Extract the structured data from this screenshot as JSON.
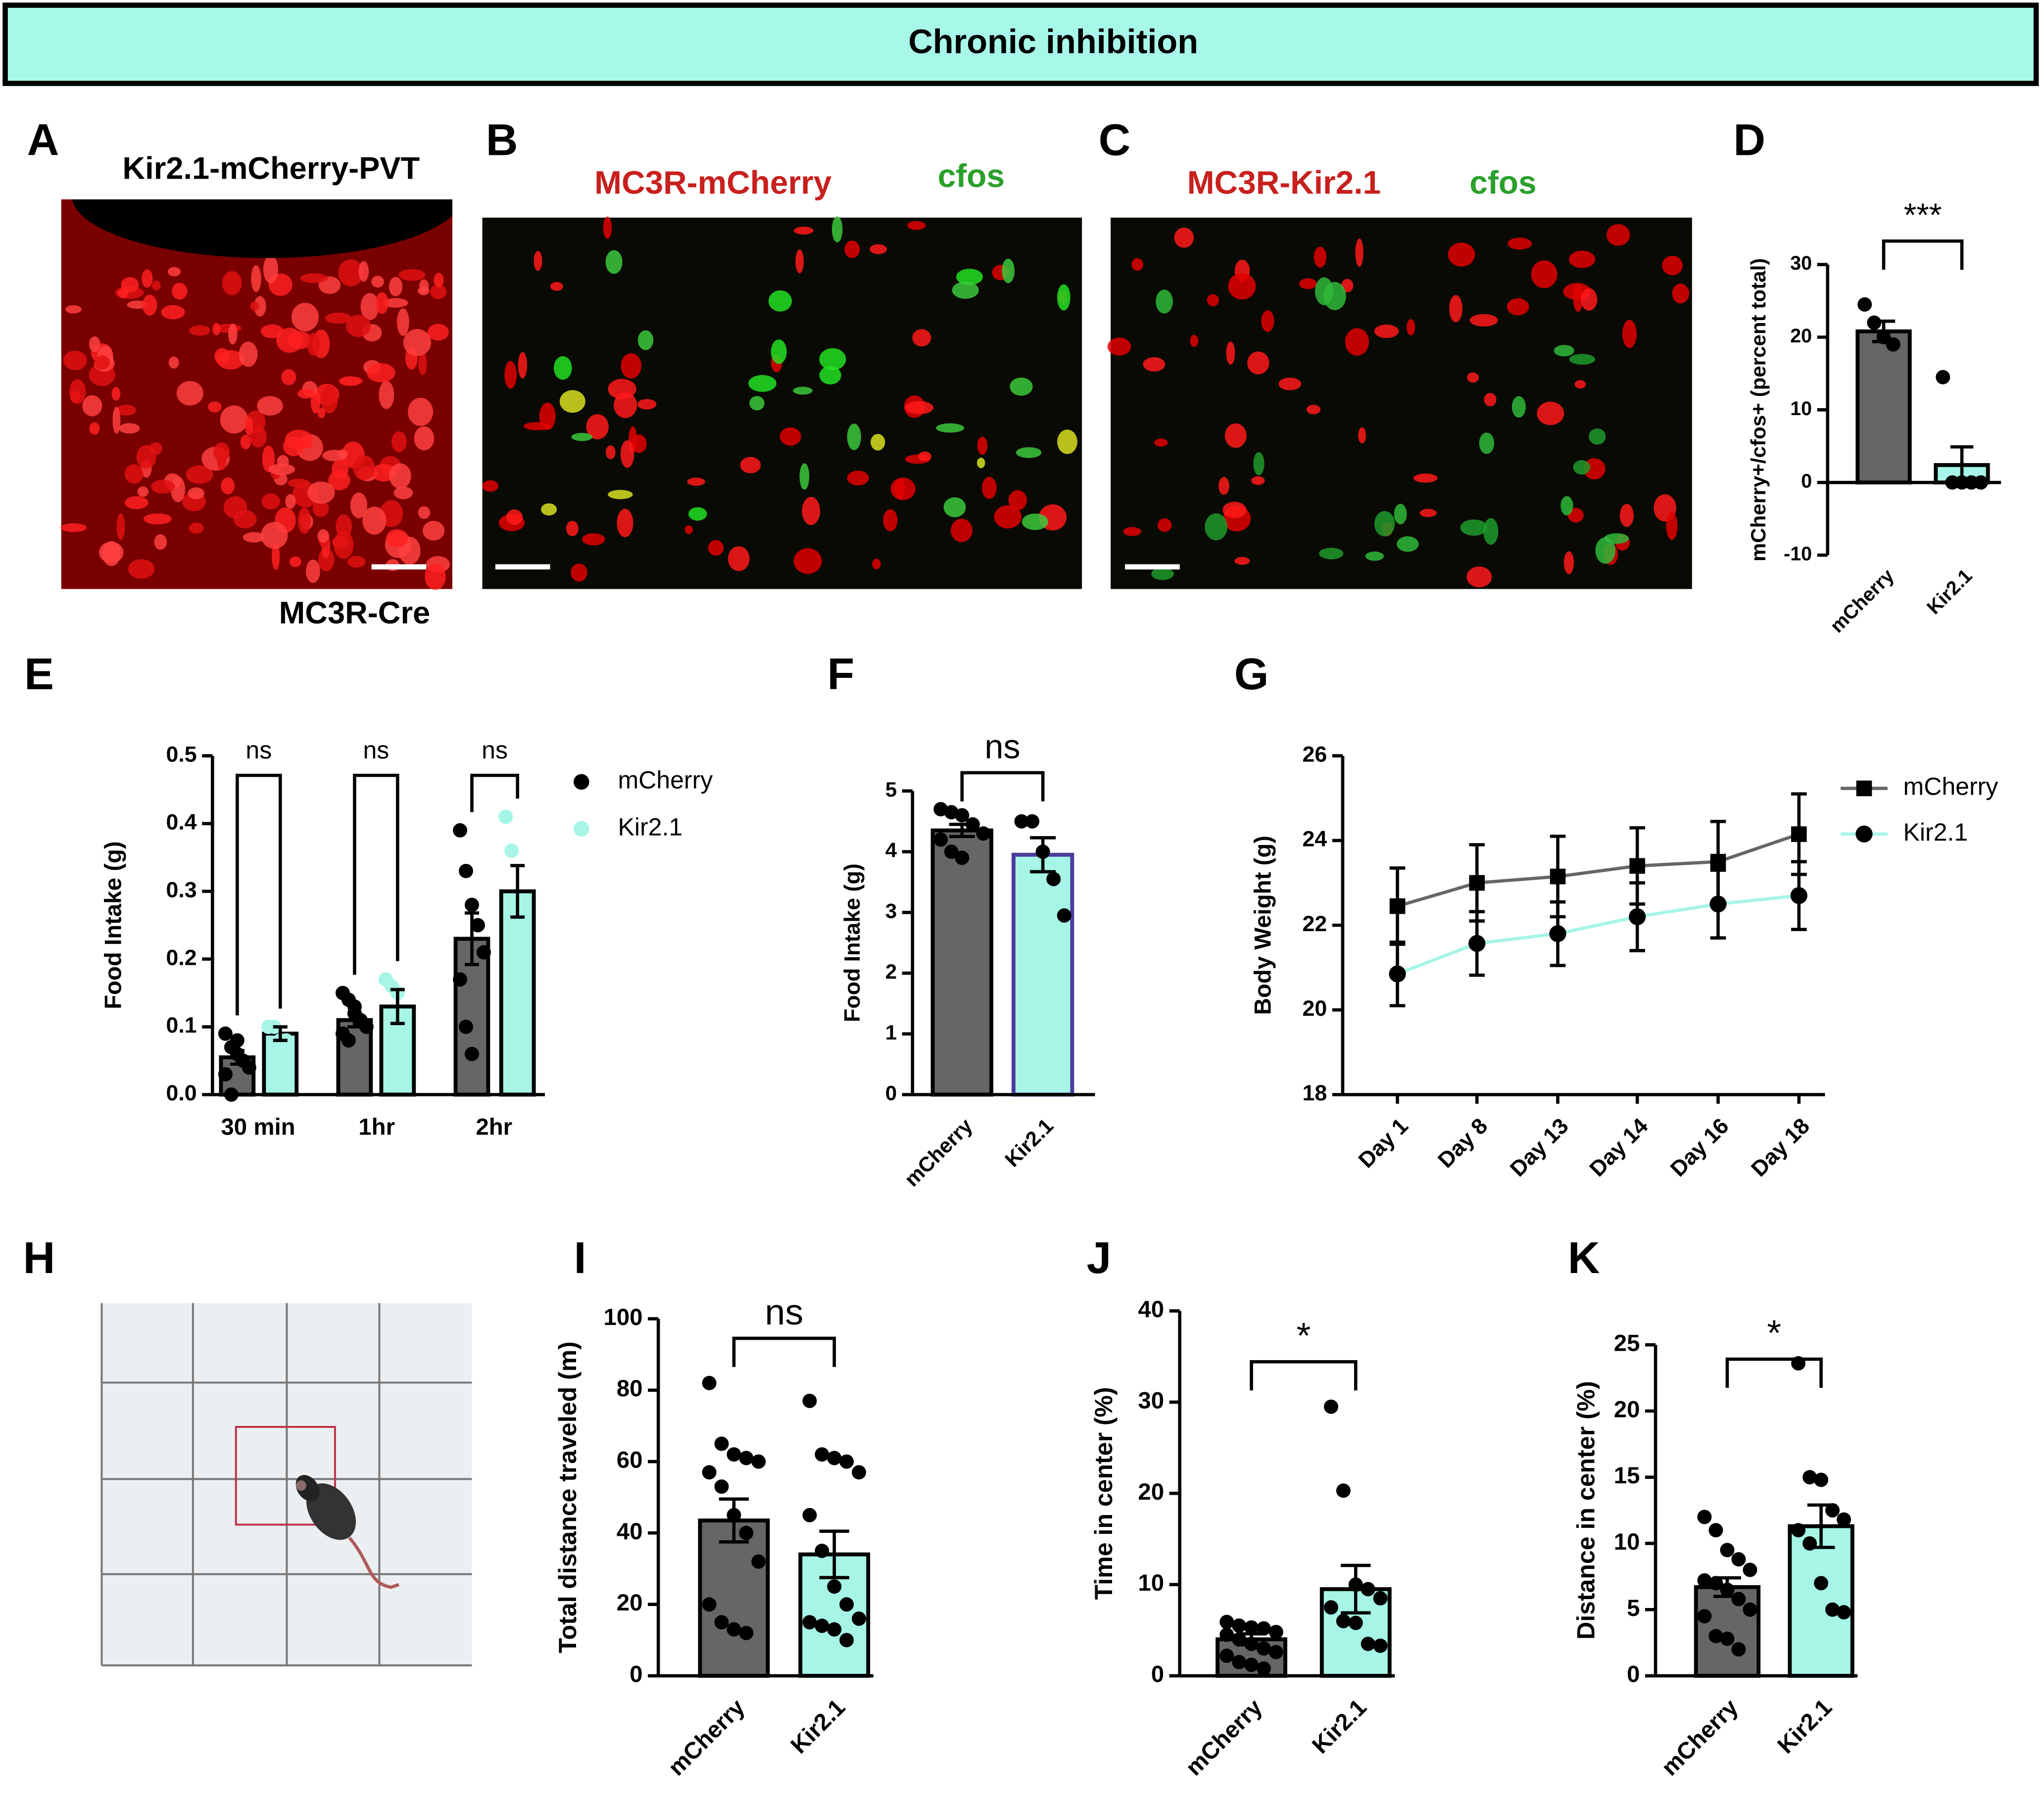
{
  "header": {
    "title": "Chronic inhibition"
  },
  "panel_letters": [
    "A",
    "B",
    "C",
    "D",
    "E",
    "F",
    "G",
    "H",
    "I",
    "J",
    "K"
  ],
  "images": [
    {
      "title": "Kir2.1-mCherry-PVT",
      "caption": "MC3R-Cre"
    },
    {
      "red_label": "MC3R-mCherry",
      "green_label": "cfos"
    },
    {
      "red_label": "MC3R-Kir2.1",
      "green_label": "cfos"
    }
  ],
  "chart_data": [
    {
      "type": "bar",
      "ylabel": "mCherry+/cfos+ (percent total)",
      "categories": [
        "mCherry",
        "Kir2.1"
      ],
      "values": [
        20.8,
        2.4
      ],
      "errors": [
        1.4,
        2.5
      ],
      "points": [
        [
          24.5,
          22,
          20,
          19
        ],
        [
          14.5,
          0,
          0,
          0,
          0
        ]
      ],
      "colors": [
        "#666666",
        "#a6f5e7"
      ],
      "edge_colors": [
        "#000000",
        "#000000"
      ],
      "point_color": "#000000",
      "ylim": [
        -10,
        30
      ],
      "yticks": [
        -10,
        0,
        10,
        20,
        30
      ],
      "significance": "***"
    },
    {
      "type": "bar",
      "ylabel": "Food Intake (g)",
      "categories": [
        "30 min",
        "1hr",
        "2hr"
      ],
      "series": [
        {
          "name": "mCherry",
          "color": "#666666",
          "edge_color": "#000000",
          "point_color": "#000000",
          "values": [
            0.055,
            0.11,
            0.23
          ],
          "errors": [
            0.01,
            0.01,
            0.038
          ],
          "points": [
            [
              0.09,
              0.07,
              0.06,
              0.05,
              0.04,
              0.03,
              0.0,
              0.08
            ],
            [
              0.15,
              0.14,
              0.12,
              0.11,
              0.1,
              0.09,
              0.08,
              0.13
            ],
            [
              0.39,
              0.33,
              0.28,
              0.25,
              0.21,
              0.17,
              0.1,
              0.06
            ]
          ]
        },
        {
          "name": "Kir2.1",
          "color": "#a6f5e7",
          "edge_color": "#000000",
          "point_color": "#a6f5e7",
          "values": [
            0.09,
            0.13,
            0.3
          ],
          "errors": [
            0.01,
            0.025,
            0.038
          ],
          "points": [
            [
              0.1,
              0.1,
              0.08,
              0.08
            ],
            [
              0.17,
              0.16,
              0.15,
              0.1
            ],
            [
              0.41,
              0.36,
              0.28,
              0.25
            ]
          ]
        }
      ],
      "ylim": [
        0,
        0.5
      ],
      "yticks": [
        {
          "value": 0,
          "label": "0.0"
        },
        0.1,
        0.2,
        0.3,
        0.4,
        0.5
      ],
      "significance": [
        "ns",
        "ns",
        "ns"
      ],
      "legend": "right"
    },
    {
      "type": "bar",
      "ylabel": "Food Intake (g)",
      "categories": [
        "mCherry",
        "Kir2.1"
      ],
      "values": [
        4.35,
        3.95
      ],
      "errors": [
        0.1,
        0.28
      ],
      "points": [
        [
          4.7,
          4.65,
          4.6,
          4.45,
          4.3,
          4.2,
          4.0,
          3.9
        ],
        [
          4.5,
          4.5,
          4.0,
          3.55,
          2.95
        ]
      ],
      "colors": [
        "#666666",
        "#a6f5e7"
      ],
      "edge_colors": [
        "#000000",
        "#4b3b9b"
      ],
      "point_color": "#000000",
      "ylim": [
        0,
        5
      ],
      "yticks": [
        0,
        1,
        2,
        3,
        4,
        5
      ],
      "significance": "ns"
    },
    {
      "type": "line",
      "ylabel": "Body Weight (g)",
      "categories": [
        "Day 1",
        "Day 8",
        "Day 13",
        "Day 14",
        "Day 16",
        "Day 18"
      ],
      "series": [
        {
          "name": "mCherry",
          "color": "#666666",
          "marker": "square",
          "marker_color": "#000000",
          "values": [
            22.45,
            23.0,
            23.15,
            23.4,
            23.5,
            24.15
          ],
          "errors": [
            0.9,
            0.9,
            0.95,
            0.9,
            0.95,
            0.95
          ]
        },
        {
          "name": "Kir2.1",
          "color": "#a6f5e7",
          "marker": "circle",
          "marker_color": "#000000",
          "values": [
            20.85,
            21.57,
            21.8,
            22.2,
            22.5,
            22.7
          ],
          "errors": [
            0.75,
            0.75,
            0.75,
            0.8,
            0.8,
            0.8
          ]
        }
      ],
      "ylim": [
        18,
        26
      ],
      "yticks": [
        18,
        20,
        22,
        24,
        26
      ],
      "legend": "top right"
    },
    {
      "type": "bar",
      "ylabel": "Total distance traveled (m)",
      "categories": [
        "mCherry",
        "Kir2.1"
      ],
      "values": [
        43.5,
        34
      ],
      "errors": [
        6,
        6.5
      ],
      "points": [
        [
          82,
          65,
          62,
          61,
          60,
          57,
          53,
          45,
          40,
          32,
          20,
          15,
          13,
          12
        ],
        [
          77,
          62,
          61,
          60,
          57,
          45,
          35,
          25,
          20,
          16,
          15,
          14,
          13,
          10
        ]
      ],
      "colors": [
        "#666666",
        "#a6f5e7"
      ],
      "edge_colors": [
        "#000000",
        "#000000"
      ],
      "point_color": "#000000",
      "ylim": [
        0,
        100
      ],
      "yticks": [
        0,
        20,
        40,
        60,
        80,
        100
      ],
      "significance": "ns"
    },
    {
      "type": "bar",
      "ylabel": "Time in center (%)",
      "categories": [
        "mCherry",
        "Kir2.1"
      ],
      "values": [
        4,
        9.5
      ],
      "errors": [
        0.6,
        2.6
      ],
      "points": [
        [
          5.9,
          5.5,
          5.3,
          5.2,
          4.8,
          4.5,
          4,
          3.5,
          3,
          2.6,
          2.2,
          1.5,
          1.2,
          0.8
        ],
        [
          29.5,
          20.3,
          10,
          9.5,
          8.5,
          7.5,
          6,
          5.8,
          3.5,
          3.3
        ]
      ],
      "colors": [
        "#666666",
        "#a6f5e7"
      ],
      "edge_colors": [
        "#000000",
        "#000000"
      ],
      "point_color": "#000000",
      "ylim": [
        0,
        40
      ],
      "yticks": [
        0,
        10,
        20,
        30,
        40
      ],
      "significance": "*"
    },
    {
      "type": "bar",
      "ylabel": "Distance in center (%)",
      "categories": [
        "mCherry",
        "Kir2.1"
      ],
      "values": [
        6.7,
        11.3
      ],
      "errors": [
        0.7,
        1.6
      ],
      "points": [
        [
          12,
          11,
          9.5,
          8.8,
          8,
          7.2,
          7,
          6.5,
          5.8,
          5,
          4.5,
          3,
          2.8,
          2
        ],
        [
          23.6,
          15,
          14.8,
          12.5,
          11.8,
          11,
          10,
          7,
          5,
          4.8
        ]
      ],
      "colors": [
        "#666666",
        "#a6f5e7"
      ],
      "edge_colors": [
        "#000000",
        "#000000"
      ],
      "point_color": "#000000",
      "ylim": [
        0,
        25
      ],
      "yticks": [
        0,
        5,
        10,
        15,
        20,
        25
      ],
      "significance": "*"
    }
  ]
}
